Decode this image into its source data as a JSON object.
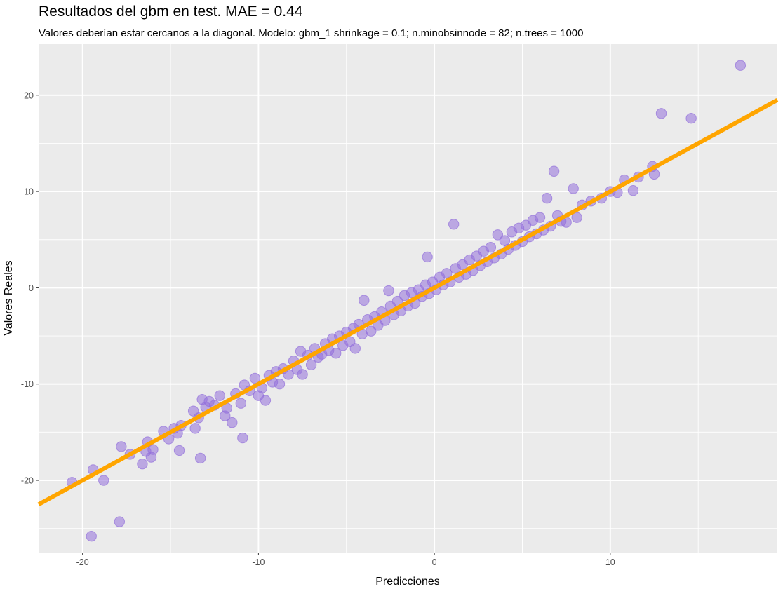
{
  "chart_data": {
    "type": "scatter",
    "title": "Resultados del gbm en test. MAE = 0.44",
    "subtitle": "Valores deberían estar cercanos a la diagonal. Modelo: gbm_1 shrinkage = 0.1; n.minobsinnode = 82; n.trees = 1000",
    "xlabel": "Predicciones",
    "ylabel": "Valores Reales",
    "xlim": [
      -22.5,
      19.5
    ],
    "ylim": [
      -27.5,
      25.3
    ],
    "x_ticks": [
      -20,
      -10,
      0,
      10
    ],
    "x_tick_labels": [
      "-20",
      "-10",
      "0",
      "10"
    ],
    "y_ticks": [
      -20,
      -10,
      0,
      10,
      20
    ],
    "y_tick_labels": [
      "-20",
      "-10",
      "0",
      "10",
      "20"
    ],
    "x_minor_ticks": [
      -15,
      -5,
      5,
      15
    ],
    "y_minor_ticks": [
      -25,
      -15,
      -5,
      5,
      15
    ],
    "grid": true,
    "legend": "none",
    "colors": {
      "panel": "#ebebeb",
      "grid": "#ffffff",
      "points": "#9370db",
      "line": "#ffa500",
      "tick_text": "#4d4d4d",
      "tick_mark": "#333333"
    },
    "reference_line": {
      "type": "identity",
      "slope": 1,
      "intercept": 0
    },
    "points": [
      [
        -20.6,
        -20.2
      ],
      [
        -19.5,
        -25.8
      ],
      [
        -19.4,
        -18.9
      ],
      [
        -18.8,
        -20.0
      ],
      [
        -17.9,
        -24.3
      ],
      [
        -17.8,
        -16.5
      ],
      [
        -17.3,
        -17.3
      ],
      [
        -16.6,
        -18.3
      ],
      [
        -16.4,
        -17.0
      ],
      [
        -16.3,
        -16.0
      ],
      [
        -16.1,
        -17.6
      ],
      [
        -16.0,
        -16.8
      ],
      [
        -15.4,
        -14.9
      ],
      [
        -15.1,
        -15.7
      ],
      [
        -14.8,
        -14.6
      ],
      [
        -14.6,
        -15.1
      ],
      [
        -14.4,
        -14.3
      ],
      [
        -14.5,
        -16.9
      ],
      [
        -13.7,
        -12.8
      ],
      [
        -13.6,
        -14.6
      ],
      [
        -13.4,
        -13.5
      ],
      [
        -13.3,
        -17.7
      ],
      [
        -13.2,
        -11.6
      ],
      [
        -13.0,
        -12.4
      ],
      [
        -12.8,
        -11.8
      ],
      [
        -12.5,
        -12.2
      ],
      [
        -12.2,
        -11.2
      ],
      [
        -11.9,
        -13.3
      ],
      [
        -11.8,
        -12.5
      ],
      [
        -11.5,
        -14.0
      ],
      [
        -11.3,
        -11.0
      ],
      [
        -11.0,
        -12.0
      ],
      [
        -10.9,
        -15.6
      ],
      [
        -10.8,
        -10.1
      ],
      [
        -10.5,
        -10.7
      ],
      [
        -10.2,
        -9.4
      ],
      [
        -10.0,
        -11.2
      ],
      [
        -9.8,
        -10.4
      ],
      [
        -9.6,
        -11.7
      ],
      [
        -9.4,
        -9.1
      ],
      [
        -9.2,
        -9.8
      ],
      [
        -9.0,
        -8.7
      ],
      [
        -8.8,
        -10.0
      ],
      [
        -8.6,
        -8.4
      ],
      [
        -8.3,
        -9.0
      ],
      [
        -8.0,
        -7.6
      ],
      [
        -7.8,
        -8.5
      ],
      [
        -7.6,
        -6.6
      ],
      [
        -7.5,
        -9.0
      ],
      [
        -7.2,
        -7.0
      ],
      [
        -7.0,
        -8.0
      ],
      [
        -6.8,
        -6.3
      ],
      [
        -6.6,
        -7.2
      ],
      [
        -6.4,
        -6.9
      ],
      [
        -6.2,
        -5.8
      ],
      [
        -6.0,
        -6.5
      ],
      [
        -5.8,
        -5.3
      ],
      [
        -5.6,
        -6.8
      ],
      [
        -5.4,
        -5.0
      ],
      [
        -5.2,
        -6.0
      ],
      [
        -5.0,
        -4.6
      ],
      [
        -4.8,
        -5.6
      ],
      [
        -4.6,
        -4.2
      ],
      [
        -4.5,
        -6.3
      ],
      [
        -4.3,
        -3.8
      ],
      [
        -4.1,
        -4.8
      ],
      [
        -4.0,
        -1.3
      ],
      [
        -3.8,
        -3.3
      ],
      [
        -3.6,
        -4.5
      ],
      [
        -3.4,
        -3.0
      ],
      [
        -3.2,
        -3.9
      ],
      [
        -3.0,
        -2.5
      ],
      [
        -2.8,
        -3.4
      ],
      [
        -2.6,
        -0.3
      ],
      [
        -2.5,
        -1.9
      ],
      [
        -2.3,
        -2.8
      ],
      [
        -2.1,
        -1.4
      ],
      [
        -1.9,
        -2.4
      ],
      [
        -1.7,
        -0.8
      ],
      [
        -1.5,
        -1.9
      ],
      [
        -1.3,
        -0.5
      ],
      [
        -1.1,
        -1.6
      ],
      [
        -0.9,
        -0.2
      ],
      [
        -0.7,
        -0.9
      ],
      [
        -0.5,
        0.3
      ],
      [
        -0.4,
        3.2
      ],
      [
        -0.3,
        -0.6
      ],
      [
        -0.1,
        0.6
      ],
      [
        0.1,
        -0.2
      ],
      [
        0.3,
        1.1
      ],
      [
        0.5,
        0.3
      ],
      [
        0.7,
        1.5
      ],
      [
        0.9,
        0.6
      ],
      [
        1.1,
        6.6
      ],
      [
        1.2,
        2.0
      ],
      [
        1.4,
        1.1
      ],
      [
        1.6,
        2.4
      ],
      [
        1.8,
        1.4
      ],
      [
        2.0,
        2.9
      ],
      [
        2.2,
        1.8
      ],
      [
        2.4,
        3.3
      ],
      [
        2.6,
        2.3
      ],
      [
        2.8,
        3.8
      ],
      [
        3.0,
        2.7
      ],
      [
        3.2,
        4.2
      ],
      [
        3.4,
        3.1
      ],
      [
        3.6,
        5.5
      ],
      [
        3.8,
        3.5
      ],
      [
        4.0,
        4.9
      ],
      [
        4.2,
        4.0
      ],
      [
        4.4,
        5.8
      ],
      [
        4.6,
        4.4
      ],
      [
        4.8,
        6.2
      ],
      [
        5.0,
        4.8
      ],
      [
        5.2,
        6.5
      ],
      [
        5.4,
        5.3
      ],
      [
        5.6,
        7.0
      ],
      [
        5.8,
        5.6
      ],
      [
        6.0,
        7.3
      ],
      [
        6.2,
        6.0
      ],
      [
        6.4,
        9.3
      ],
      [
        6.6,
        6.4
      ],
      [
        6.8,
        12.1
      ],
      [
        7.0,
        7.5
      ],
      [
        7.2,
        6.9
      ],
      [
        7.5,
        6.8
      ],
      [
        7.9,
        10.3
      ],
      [
        8.1,
        7.3
      ],
      [
        8.4,
        8.6
      ],
      [
        8.9,
        9.0
      ],
      [
        9.5,
        9.3
      ],
      [
        10.0,
        10.0
      ],
      [
        10.4,
        9.9
      ],
      [
        10.8,
        11.2
      ],
      [
        11.3,
        10.1
      ],
      [
        11.6,
        11.5
      ],
      [
        12.4,
        12.6
      ],
      [
        12.5,
        11.8
      ],
      [
        12.9,
        18.1
      ],
      [
        14.6,
        17.6
      ],
      [
        17.4,
        23.1
      ]
    ]
  }
}
